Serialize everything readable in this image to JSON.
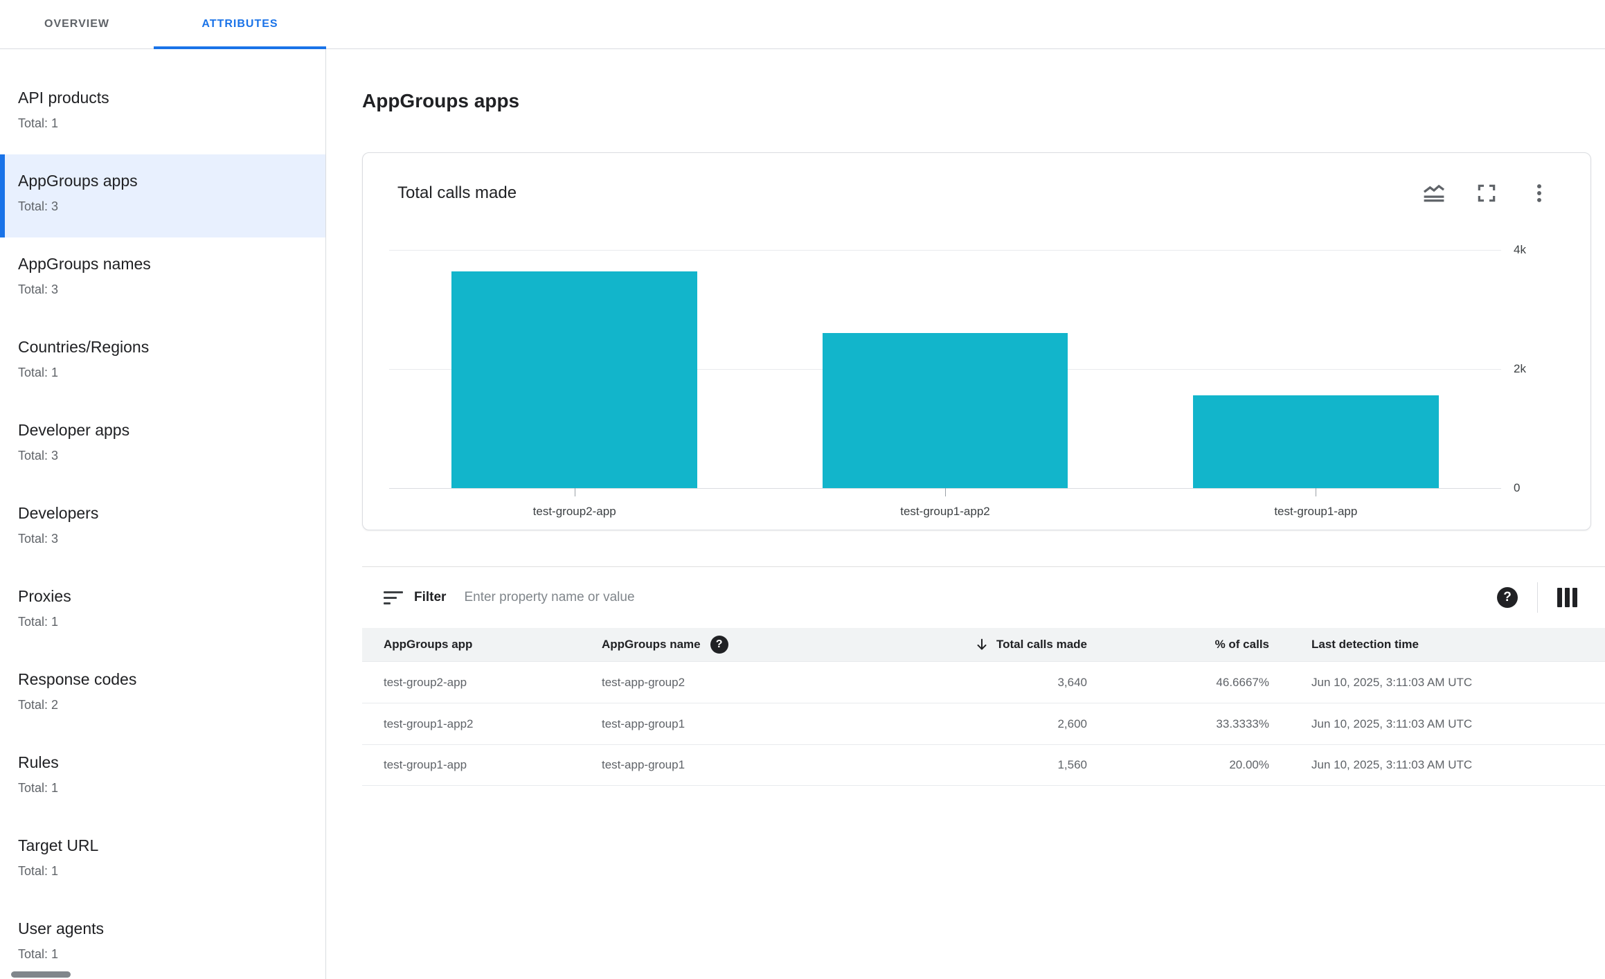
{
  "tabs": [
    {
      "label": "OVERVIEW",
      "active": false
    },
    {
      "label": "ATTRIBUTES",
      "active": true
    }
  ],
  "sidebar": {
    "items": [
      {
        "label": "API products",
        "total": "Total: 1",
        "selected": false
      },
      {
        "label": "AppGroups apps",
        "total": "Total: 3",
        "selected": true
      },
      {
        "label": "AppGroups names",
        "total": "Total: 3",
        "selected": false
      },
      {
        "label": "Countries/Regions",
        "total": "Total: 1",
        "selected": false
      },
      {
        "label": "Developer apps",
        "total": "Total: 3",
        "selected": false
      },
      {
        "label": "Developers",
        "total": "Total: 3",
        "selected": false
      },
      {
        "label": "Proxies",
        "total": "Total: 1",
        "selected": false
      },
      {
        "label": "Response codes",
        "total": "Total: 2",
        "selected": false
      },
      {
        "label": "Rules",
        "total": "Total: 1",
        "selected": false
      },
      {
        "label": "Target URL",
        "total": "Total: 1",
        "selected": false
      },
      {
        "label": "User agents",
        "total": "Total: 1",
        "selected": false
      }
    ]
  },
  "main": {
    "page_title": "AppGroups apps",
    "card": {
      "title": "Total calls made",
      "icons": [
        "area-chart-icon",
        "fullscreen-icon",
        "more-vert-icon"
      ]
    },
    "filter": {
      "label": "Filter",
      "placeholder": "Enter property name or value",
      "icons": [
        "filter-icon",
        "help-icon",
        "columns-icon"
      ]
    },
    "table": {
      "columns": [
        {
          "label": "AppGroups app",
          "align": "left"
        },
        {
          "label": "AppGroups name",
          "align": "left",
          "help_icon": true
        },
        {
          "label": "Total calls made",
          "align": "right",
          "sort": "desc"
        },
        {
          "label": "% of calls",
          "align": "right"
        },
        {
          "label": "Last detection time",
          "align": "left"
        }
      ],
      "rows": [
        [
          "test-group2-app",
          "test-app-group2",
          "3,640",
          "46.6667%",
          "Jun 10, 2025, 3:11:03 AM UTC"
        ],
        [
          "test-group1-app2",
          "test-app-group1",
          "2,600",
          "33.3333%",
          "Jun 10, 2025, 3:11:03 AM UTC"
        ],
        [
          "test-group1-app",
          "test-app-group1",
          "1,560",
          "20.00%",
          "Jun 10, 2025, 3:11:03 AM UTC"
        ]
      ]
    }
  },
  "chart_data": {
    "type": "bar",
    "title": "Total calls made",
    "categories": [
      "test-group2-app",
      "test-group1-app2",
      "test-group1-app"
    ],
    "values": [
      3640,
      2600,
      1560
    ],
    "ylim": [
      0,
      4000
    ],
    "yticks": [
      {
        "value": 0,
        "label": "0"
      },
      {
        "value": 2000,
        "label": "2k"
      },
      {
        "value": 4000,
        "label": "4k"
      }
    ],
    "bar_color": "#12b5cb",
    "grid": "horizontal",
    "axis_side": "right",
    "legend": "none"
  },
  "colors": {
    "accent": "#1a73e8",
    "bar": "#12b5cb",
    "selected_bg": "#e8f0fe",
    "border": "#dadce0"
  }
}
